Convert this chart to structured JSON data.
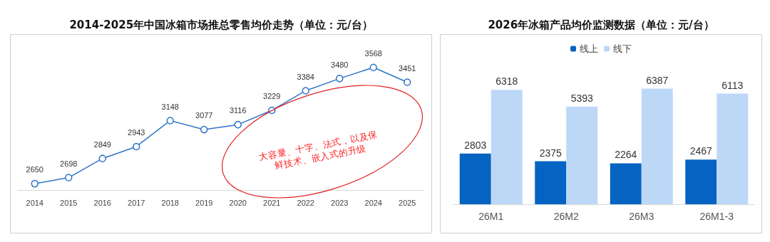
{
  "chart_data": [
    {
      "type": "line",
      "title": "2014-2025年中国冰箱市场推总零售均价走势（单位：元/台）",
      "categories": [
        "2014",
        "2015",
        "2016",
        "2017",
        "2018",
        "2019",
        "2020",
        "2021",
        "2022",
        "2023",
        "2024",
        "2025"
      ],
      "series": [
        {
          "color": "#2e75c8",
          "values": [
            2650,
            2698,
            2849,
            2943,
            3148,
            3077,
            3116,
            3229,
            3384,
            3480,
            3568,
            3451
          ]
        }
      ],
      "marker": "circle",
      "data_labels": true,
      "grid": false,
      "legend": false,
      "tick_labels": "x",
      "annotations": [
        "大容量、十字、法式，以及保鲜技术、嵌入式的升级"
      ]
    },
    {
      "type": "bar",
      "title": "2026年冰箱产品均价监测数据（单位：元/台）",
      "categories": [
        "26M1",
        "26M2",
        "26M3",
        "26M1-3"
      ],
      "series": [
        {
          "name": "线上",
          "color": "#0563c1",
          "values": [
            2803,
            2375,
            2264,
            2467
          ]
        },
        {
          "name": "线下",
          "color": "#bdd7f7",
          "values": [
            6318,
            5393,
            6387,
            6113
          ]
        }
      ],
      "data_labels": true,
      "grid": false,
      "legend": "top",
      "tick_labels": "x"
    }
  ]
}
